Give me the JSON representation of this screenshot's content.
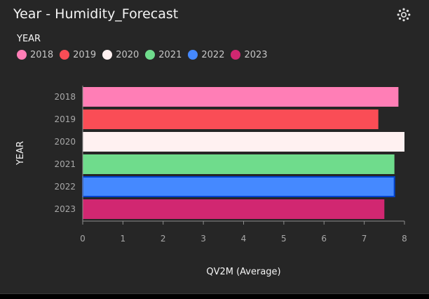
{
  "header": {
    "title": "Year - Humidity_Forecast",
    "settings_icon": "gear-icon"
  },
  "legend": {
    "title": "YEAR",
    "items": [
      {
        "label": "2018",
        "color": "#ff7eb6"
      },
      {
        "label": "2019",
        "color": "#fa4d56"
      },
      {
        "label": "2020",
        "color": "#fff1f1"
      },
      {
        "label": "2021",
        "color": "#6fdc8c"
      },
      {
        "label": "2022",
        "color": "#4589ff"
      },
      {
        "label": "2023",
        "color": "#d12771"
      }
    ]
  },
  "chart_data": {
    "type": "bar",
    "orientation": "horizontal",
    "categories": [
      "2018",
      "2019",
      "2020",
      "2021",
      "2022",
      "2023"
    ],
    "values": [
      7.85,
      7.35,
      8.0,
      7.75,
      7.75,
      7.5
    ],
    "colors": [
      "#ff7eb6",
      "#fa4d56",
      "#fff1f1",
      "#6fdc8c",
      "#4589ff",
      "#d12771"
    ],
    "xlabel": "QV2M (Average)",
    "ylabel": "YEAR",
    "xlim": [
      0,
      8
    ],
    "xticks": [
      "0",
      "1",
      "2",
      "3",
      "4",
      "5",
      "6",
      "7",
      "8"
    ],
    "highlighted_category": "2022",
    "grid": false
  }
}
